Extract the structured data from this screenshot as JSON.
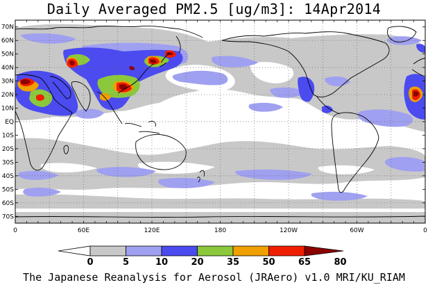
{
  "title": "Daily Averaged PM2.5 [ug/m3]: 14Apr2014",
  "credit": "The Japanese Reanalysis for Aerosol (JRAero) v1.0 MRI/KU_RIAM",
  "map": {
    "lon_range": [
      0,
      360
    ],
    "lat_range": [
      -75,
      75
    ],
    "lat_labels": [
      "70N",
      "60N",
      "50N",
      "40N",
      "30N",
      "20N",
      "10N",
      "EQ",
      "10S",
      "20S",
      "30S",
      "40S",
      "50S",
      "60S",
      "70S"
    ],
    "lon_labels": [
      "0",
      "60E",
      "120E",
      "180",
      "120W",
      "60W",
      "0"
    ],
    "grid": true
  },
  "colorbar": {
    "levels": [
      "0",
      "5",
      "10",
      "20",
      "35",
      "50",
      "65",
      "80"
    ],
    "colors": [
      "#ffffff",
      "#c8c8c8",
      "#a0a0f0",
      "#4b4bf0",
      "#8cc83c",
      "#f0a000",
      "#f01e00",
      "#8c0000"
    ]
  }
}
